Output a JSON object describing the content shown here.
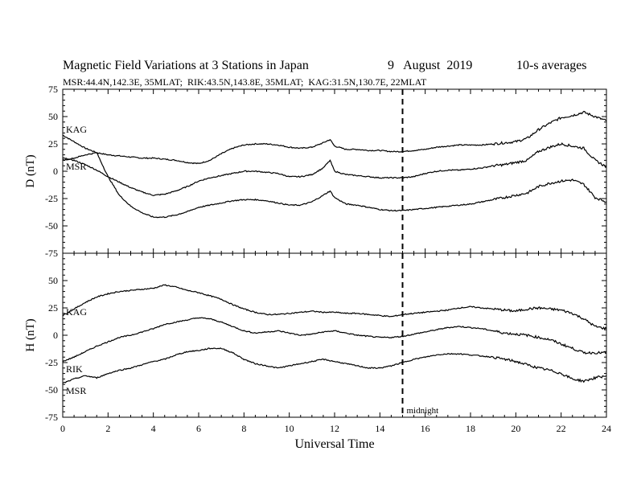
{
  "header": {
    "title": "Magnetic Field Variations at 3 Stations in Japan",
    "date": "9   August  2019",
    "averaging": "10-s averages",
    "stations_line": "MSR:44.4N,142.3E, 35MLAT;  RIK:43.5N,143.8E, 35MLAT;  KAG:31.5N,130.7E, 22MLAT"
  },
  "chart_data": [
    {
      "type": "line",
      "panel": "top",
      "ylabel": "D (nT)",
      "ylim": [
        -75,
        75
      ],
      "yticks": [
        -75,
        -50,
        -25,
        0,
        25,
        50,
        75
      ],
      "x": [
        0,
        0.5,
        1,
        1.5,
        2,
        2.5,
        3,
        3.5,
        4,
        4.5,
        5,
        5.5,
        6,
        6.5,
        7,
        7.5,
        8,
        8.5,
        9,
        9.5,
        10,
        10.5,
        11,
        11.5,
        11.8,
        12,
        12.5,
        13,
        13.5,
        14,
        14.5,
        15,
        15.5,
        16,
        16.5,
        17,
        17.5,
        18,
        18.5,
        19,
        19.5,
        20,
        20.5,
        21,
        21.5,
        22,
        22.5,
        23,
        23.5,
        24
      ],
      "series": [
        {
          "name": "KAG",
          "values": [
            33,
            27,
            21,
            17,
            15,
            14,
            13,
            12,
            12,
            11,
            10,
            8,
            7,
            10,
            16,
            21,
            24,
            25,
            25,
            24,
            22,
            21,
            22,
            26,
            29,
            23,
            20,
            20,
            19,
            19,
            18,
            18,
            19,
            20,
            22,
            23,
            24,
            24,
            24,
            25,
            26,
            27,
            30,
            38,
            44,
            49,
            51,
            54,
            50,
            46
          ]
        },
        {
          "name": "MSR",
          "values": [
            12,
            10,
            6,
            1,
            -5,
            -10,
            -15,
            -19,
            -22,
            -21,
            -18,
            -14,
            -9,
            -6,
            -4,
            -2,
            0,
            0,
            -1,
            -2,
            -5,
            -5,
            -3,
            3,
            10,
            0,
            -3,
            -4,
            -5,
            -6,
            -6,
            -6,
            -5,
            -2,
            0,
            1,
            1,
            2,
            3,
            5,
            6,
            8,
            10,
            18,
            22,
            25,
            23,
            21,
            10,
            4
          ]
        },
        {
          "name": "RIK",
          "values": [
            10,
            12,
            15,
            17,
            -5,
            -22,
            -32,
            -38,
            -42,
            -42,
            -40,
            -37,
            -33,
            -31,
            -29,
            -27,
            -26,
            -26,
            -27,
            -29,
            -31,
            -31,
            -28,
            -22,
            -18,
            -24,
            -30,
            -31,
            -33,
            -35,
            -36,
            -36,
            -35,
            -34,
            -33,
            -32,
            -31,
            -30,
            -28,
            -26,
            -24,
            -22,
            -20,
            -14,
            -11,
            -9,
            -8,
            -12,
            -24,
            -28
          ]
        }
      ],
      "annotations": [
        "KAG",
        "MSR"
      ]
    },
    {
      "type": "line",
      "panel": "bottom",
      "ylabel": "H (nT)",
      "ylim": [
        -75,
        75
      ],
      "yticks": [
        -75,
        -50,
        -25,
        0,
        25,
        50,
        75
      ],
      "x": [
        0,
        0.5,
        1,
        1.5,
        2,
        2.5,
        3,
        3.5,
        4,
        4.5,
        5,
        5.5,
        6,
        6.5,
        7,
        7.5,
        8,
        8.5,
        9,
        9.5,
        10,
        10.5,
        11,
        11.5,
        12,
        12.5,
        13,
        13.5,
        14,
        14.5,
        15,
        15.5,
        16,
        16.5,
        17,
        17.5,
        18,
        18.5,
        19,
        19.5,
        20,
        20.5,
        21,
        21.5,
        22,
        22.5,
        23,
        23.5,
        24
      ],
      "series": [
        {
          "name": "KAG",
          "values": [
            18,
            24,
            30,
            35,
            38,
            40,
            41,
            42,
            43,
            46,
            44,
            41,
            39,
            36,
            33,
            28,
            24,
            21,
            19,
            19,
            20,
            21,
            22,
            21,
            21,
            20,
            20,
            19,
            18,
            17,
            19,
            20,
            21,
            22,
            23,
            25,
            26,
            25,
            24,
            23,
            22,
            24,
            25,
            24,
            23,
            20,
            15,
            8,
            6
          ]
        },
        {
          "name": "RIK",
          "values": [
            -24,
            -20,
            -15,
            -10,
            -6,
            -2,
            0,
            3,
            6,
            10,
            12,
            14,
            16,
            15,
            12,
            8,
            4,
            2,
            3,
            4,
            2,
            0,
            1,
            3,
            4,
            2,
            0,
            -1,
            -2,
            -2,
            -1,
            1,
            3,
            5,
            7,
            8,
            7,
            6,
            4,
            2,
            1,
            0,
            -2,
            -4,
            -8,
            -12,
            -16,
            -16,
            -16
          ]
        },
        {
          "name": "MSR",
          "values": [
            -44,
            -40,
            -37,
            -39,
            -35,
            -32,
            -30,
            -27,
            -24,
            -22,
            -18,
            -15,
            -14,
            -12,
            -12,
            -16,
            -22,
            -26,
            -28,
            -30,
            -28,
            -26,
            -24,
            -22,
            -24,
            -26,
            -28,
            -30,
            -30,
            -28,
            -25,
            -22,
            -20,
            -18,
            -17,
            -17,
            -18,
            -19,
            -20,
            -22,
            -24,
            -27,
            -30,
            -32,
            -35,
            -40,
            -42,
            -39,
            -37
          ]
        }
      ],
      "annotations": [
        "KAG",
        "RIK",
        "MSR"
      ]
    }
  ],
  "x_axis": {
    "xlabel": "Universal Time",
    "xlim": [
      0,
      24
    ],
    "xticks": [
      0,
      2,
      4,
      6,
      8,
      10,
      12,
      14,
      16,
      18,
      20,
      22,
      24
    ]
  },
  "midnight_marker": {
    "x": 15,
    "label": "midnight"
  },
  "colors": {
    "line": "#000000",
    "background": "#ffffff"
  }
}
